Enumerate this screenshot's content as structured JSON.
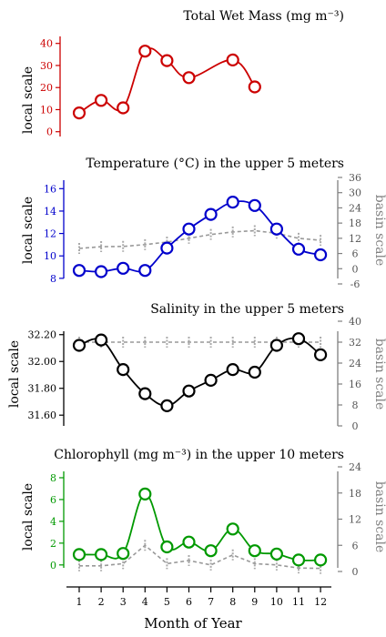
{
  "chart_data": [
    {
      "type": "line",
      "title": "Total Wet Mass (mg m⁻³)",
      "color": "#cc0000",
      "ylabel": "local scale",
      "ylim": [
        -3,
        44
      ],
      "yticks": [
        0,
        10,
        20,
        30,
        40
      ],
      "series": [
        {
          "x": [
            1,
            2,
            3,
            4,
            5,
            6,
            8,
            9
          ],
          "values": [
            8.5,
            14.2,
            10.8,
            36.5,
            32.2,
            24.5,
            32.5,
            20.3
          ]
        }
      ]
    },
    {
      "type": "line",
      "title": "Temperature (°C) in the upper 5 meters",
      "color": "#0000cc",
      "ylabel": "local scale",
      "y2label": "basin scale",
      "ylim": [
        7.5,
        17
      ],
      "yticks": [
        8,
        10,
        12,
        14,
        16
      ],
      "y2lim": [
        -6,
        36
      ],
      "y2ticks": [
        -6,
        0,
        6,
        12,
        18,
        24,
        30,
        36
      ],
      "series": [
        {
          "x": [
            1,
            2,
            3,
            4,
            5,
            6,
            7,
            8,
            9,
            10,
            11,
            12
          ],
          "values": [
            8.7,
            8.6,
            8.9,
            8.7,
            10.7,
            12.4,
            13.7,
            14.8,
            14.5,
            12.4,
            10.6,
            10.1
          ]
        },
        {
          "x": [
            1,
            2,
            3,
            4,
            5,
            6,
            7,
            8,
            9,
            10,
            11,
            12
          ],
          "values": [
            8.0,
            8.7,
            8.8,
            9.5,
            10.5,
            12.0,
            13.5,
            14.5,
            15.0,
            14.0,
            12.0,
            11.2
          ],
          "axis": "basin",
          "style": "dashed"
        }
      ]
    },
    {
      "type": "line",
      "title": "Salinity in the upper 5 meters",
      "color": "#000000",
      "ylabel": "local scale",
      "y2label": "basin scale",
      "ylim": [
        31.52,
        32.3
      ],
      "yticks": [
        "31.60",
        "31.80",
        "32.00",
        "32.20"
      ],
      "y2lim": [
        0,
        40
      ],
      "y2ticks": [
        0,
        8,
        16,
        24,
        32,
        40
      ],
      "series": [
        {
          "x": [
            1,
            2,
            3,
            4,
            5,
            6,
            7,
            8,
            9,
            10,
            11,
            12
          ],
          "values": [
            32.12,
            32.16,
            31.94,
            31.76,
            31.67,
            31.78,
            31.86,
            31.94,
            31.92,
            32.12,
            32.17,
            32.05
          ]
        },
        {
          "x": [
            1,
            2,
            3,
            4,
            5,
            6,
            7,
            8,
            9,
            10,
            11,
            12
          ],
          "values": [
            32,
            32,
            32,
            32,
            32,
            32,
            32,
            32,
            32,
            32,
            32,
            32
          ],
          "axis": "basin",
          "style": "dashed"
        }
      ]
    },
    {
      "type": "line",
      "title": "Chlorophyll (mg m⁻³) in the upper 10 meters",
      "color": "#009900",
      "ylabel": "local scale",
      "y2label": "basin scale",
      "ylim": [
        -0.6,
        9
      ],
      "yticks": [
        0,
        2,
        4,
        6,
        8
      ],
      "y2lim": [
        0,
        24
      ],
      "y2ticks": [
        0,
        6,
        12,
        18,
        24
      ],
      "series": [
        {
          "x": [
            1,
            2,
            3,
            4,
            5,
            6,
            7,
            8,
            9,
            10,
            11,
            12
          ],
          "values": [
            0.95,
            0.95,
            1.05,
            6.5,
            1.65,
            2.1,
            1.3,
            3.3,
            1.3,
            1.0,
            0.45,
            0.45
          ]
        },
        {
          "x": [
            1,
            2,
            3,
            4,
            5,
            6,
            7,
            8,
            9,
            10,
            11,
            12
          ],
          "values": [
            1.3,
            1.3,
            1.8,
            6.0,
            1.8,
            2.5,
            1.5,
            3.8,
            1.8,
            1.5,
            0.8,
            0.7
          ],
          "axis": "basin",
          "style": "dashed"
        }
      ]
    }
  ],
  "xaxis": {
    "label": "Month of Year",
    "ticks": [
      "1",
      "2",
      "3",
      "4",
      "5",
      "6",
      "7",
      "8",
      "9",
      "10",
      "11",
      "12"
    ]
  }
}
